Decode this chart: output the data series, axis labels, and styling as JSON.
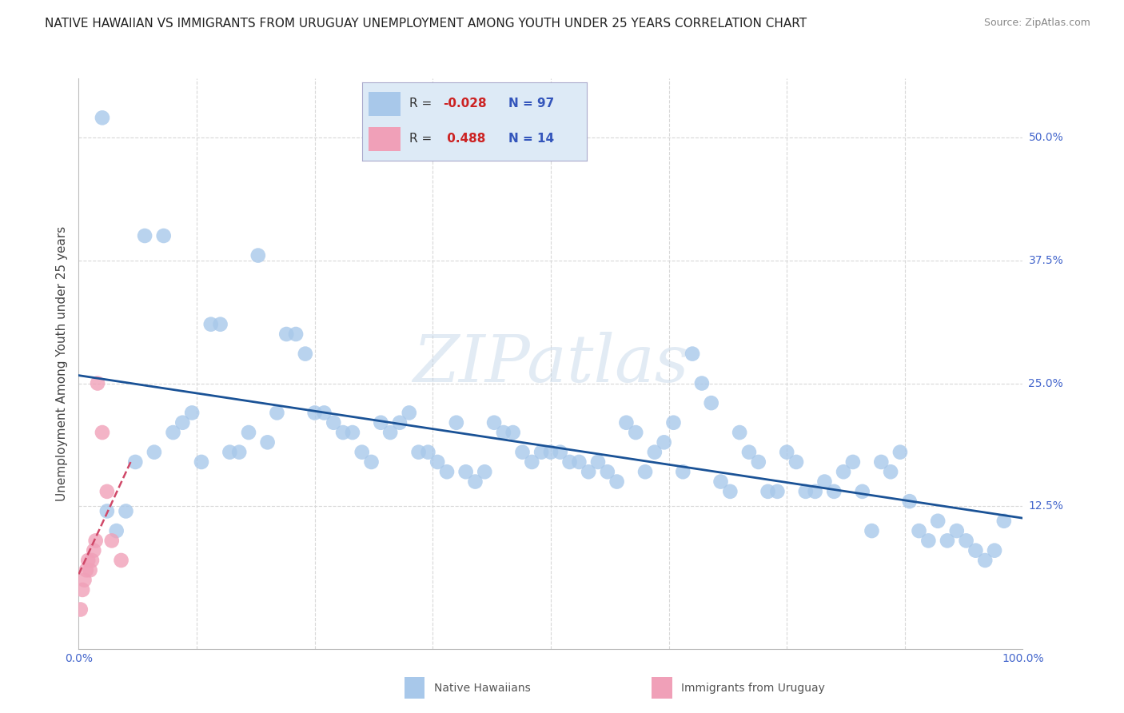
{
  "title": "NATIVE HAWAIIAN VS IMMIGRANTS FROM URUGUAY UNEMPLOYMENT AMONG YOUTH UNDER 25 YEARS CORRELATION CHART",
  "source": "Source: ZipAtlas.com",
  "ylabel": "Unemployment Among Youth under 25 years",
  "xlim": [
    0,
    100
  ],
  "ylim": [
    -2,
    56
  ],
  "blue_R": -0.028,
  "blue_N": 97,
  "pink_R": 0.488,
  "pink_N": 14,
  "blue_color": "#a8c8ea",
  "pink_color": "#f0a0b8",
  "blue_line_color": "#1a5296",
  "pink_line_color": "#d04868",
  "watermark": "ZIPatlas",
  "title_fontsize": 11,
  "axis_label_fontsize": 11,
  "tick_fontsize": 10,
  "source_fontsize": 9,
  "grid_color": "#d8d8d8",
  "legend_bg": "#ddeaf6",
  "blue_x": [
    2.5,
    7.0,
    9.0,
    14.0,
    15.0,
    19.0,
    22.0,
    23.0,
    24.0,
    25.0,
    26.0,
    27.0,
    28.0,
    29.0,
    30.0,
    31.0,
    32.0,
    33.0,
    34.0,
    35.0,
    36.0,
    37.0,
    38.0,
    39.0,
    40.0,
    41.0,
    42.0,
    43.0,
    44.0,
    45.0,
    46.0,
    47.0,
    48.0,
    49.0,
    50.0,
    51.0,
    52.0,
    53.0,
    54.0,
    55.0,
    56.0,
    57.0,
    58.0,
    59.0,
    60.0,
    61.0,
    62.0,
    63.0,
    64.0,
    65.0,
    66.0,
    67.0,
    68.0,
    69.0,
    70.0,
    71.0,
    72.0,
    73.0,
    74.0,
    75.0,
    76.0,
    77.0,
    78.0,
    79.0,
    80.0,
    81.0,
    82.0,
    83.0,
    84.0,
    85.0,
    86.0,
    87.0,
    88.0,
    89.0,
    90.0,
    10.0,
    11.0,
    12.0,
    13.0,
    16.0,
    17.0,
    18.0,
    20.0,
    21.0,
    91.0,
    92.0,
    93.0,
    94.0,
    95.0,
    6.0,
    8.0,
    4.0,
    5.0,
    3.0,
    96.0,
    97.0,
    98.0
  ],
  "blue_y": [
    52.0,
    40.0,
    40.0,
    31.0,
    31.0,
    38.0,
    30.0,
    30.0,
    28.0,
    22.0,
    22.0,
    21.0,
    20.0,
    20.0,
    18.0,
    17.0,
    21.0,
    20.0,
    21.0,
    22.0,
    18.0,
    18.0,
    17.0,
    16.0,
    21.0,
    16.0,
    15.0,
    16.0,
    21.0,
    20.0,
    20.0,
    18.0,
    17.0,
    18.0,
    18.0,
    18.0,
    17.0,
    17.0,
    16.0,
    17.0,
    16.0,
    15.0,
    21.0,
    20.0,
    16.0,
    18.0,
    19.0,
    21.0,
    16.0,
    28.0,
    25.0,
    23.0,
    15.0,
    14.0,
    20.0,
    18.0,
    17.0,
    14.0,
    14.0,
    18.0,
    17.0,
    14.0,
    14.0,
    15.0,
    14.0,
    16.0,
    17.0,
    14.0,
    10.0,
    17.0,
    16.0,
    18.0,
    13.0,
    10.0,
    9.0,
    20.0,
    21.0,
    22.0,
    17.0,
    18.0,
    18.0,
    20.0,
    19.0,
    22.0,
    11.0,
    9.0,
    10.0,
    9.0,
    8.0,
    17.0,
    18.0,
    10.0,
    12.0,
    12.0,
    7.0,
    8.0,
    11.0
  ],
  "pink_x": [
    0.2,
    0.4,
    0.6,
    0.8,
    1.0,
    1.2,
    1.4,
    1.6,
    1.8,
    2.0,
    2.5,
    3.0,
    3.5,
    4.5
  ],
  "pink_y": [
    2.0,
    4.0,
    5.0,
    6.0,
    7.0,
    6.0,
    7.0,
    8.0,
    9.0,
    25.0,
    20.0,
    14.0,
    9.0,
    7.0
  ],
  "ytick_positions": [
    0,
    12.5,
    25,
    37.5,
    50
  ],
  "ytick_labels": [
    "",
    "12.5%",
    "25.0%",
    "37.5%",
    "50.0%"
  ],
  "xtick_positions": [
    0,
    100
  ],
  "xtick_labels": [
    "0.0%",
    "100.0%"
  ]
}
